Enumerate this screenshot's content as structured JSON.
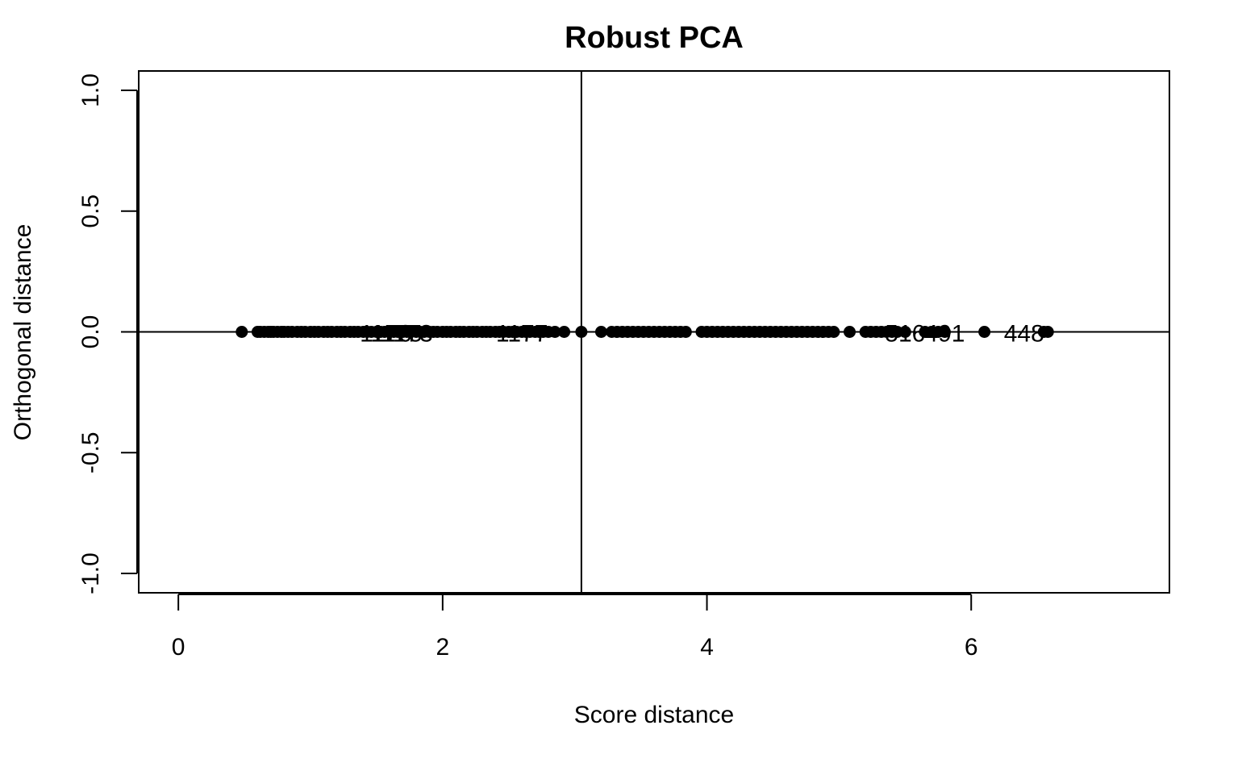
{
  "chart_data": {
    "type": "scatter",
    "title": "Robust PCA",
    "xlabel": "Score distance",
    "ylabel": "Orthogonal distance",
    "xlim": [
      -0.3,
      7.5
    ],
    "ylim": [
      -1.08,
      1.08
    ],
    "x_ticks": [
      0,
      2,
      4,
      6
    ],
    "x_tick_labels": [
      "0",
      "2",
      "4",
      "6"
    ],
    "y_ticks": [
      -1.0,
      -0.5,
      0.0,
      0.5,
      1.0
    ],
    "y_tick_labels": [
      "-1.0",
      "-0.5",
      "0.0",
      "0.5",
      "1.0"
    ],
    "grid": false,
    "cutoff_lines": {
      "x": 3.05,
      "y": 0.0
    },
    "marker_color": "#000000",
    "series": [
      {
        "x": [
          0.48,
          0.6,
          0.62,
          0.65,
          0.68,
          0.7,
          0.72,
          0.75,
          0.78,
          0.8,
          0.83,
          0.86,
          0.9,
          0.93,
          0.96,
          1.0,
          1.03,
          1.06,
          1.1,
          1.13,
          1.16,
          1.2,
          1.23,
          1.26,
          1.3,
          1.33,
          1.36,
          1.4,
          1.43,
          1.46,
          1.5,
          1.53,
          1.56,
          1.6,
          1.63,
          1.66,
          1.7,
          1.73,
          1.76,
          1.8,
          1.83,
          1.86,
          1.9,
          1.93,
          1.96,
          2.0,
          2.03,
          2.06,
          2.1,
          2.13,
          2.16,
          2.2,
          2.23,
          2.26,
          2.3,
          2.33,
          2.36,
          2.4,
          2.43,
          2.46,
          2.5,
          2.53,
          2.56,
          2.6,
          2.63,
          2.66,
          2.7,
          2.73,
          2.76,
          2.8,
          2.85,
          2.92,
          3.05,
          3.2,
          3.28,
          3.32,
          3.36,
          3.4,
          3.44,
          3.48,
          3.52,
          3.56,
          3.6,
          3.64,
          3.68,
          3.72,
          3.76,
          3.8,
          3.84,
          3.96,
          4.0,
          4.04,
          4.08,
          4.12,
          4.16,
          4.2,
          4.24,
          4.28,
          4.32,
          4.36,
          4.4,
          4.44,
          4.48,
          4.52,
          4.56,
          4.6,
          4.64,
          4.68,
          4.72,
          4.76,
          4.8,
          4.84,
          4.88,
          4.92,
          4.96,
          5.08,
          5.2,
          5.24,
          5.28,
          5.32,
          5.36,
          5.4,
          5.44,
          5.5,
          5.65,
          5.7,
          5.75,
          5.8,
          6.1,
          6.55,
          6.58
        ],
        "y": [
          0,
          0,
          0,
          0,
          0,
          0,
          0,
          0,
          0,
          0,
          0,
          0,
          0,
          0,
          0,
          0,
          0,
          0,
          0,
          0,
          0,
          0,
          0,
          0,
          0,
          0,
          0,
          0,
          0,
          0,
          0,
          0,
          0,
          0,
          0,
          0,
          0,
          0,
          0,
          0,
          0,
          0,
          0,
          0,
          0,
          0,
          0,
          0,
          0,
          0,
          0,
          0,
          0,
          0,
          0,
          0,
          0,
          0,
          0,
          0,
          0,
          0,
          0,
          0,
          0,
          0,
          0,
          0,
          0,
          0,
          0,
          0,
          0,
          0,
          0,
          0,
          0,
          0,
          0,
          0,
          0,
          0,
          0,
          0,
          0,
          0,
          0,
          0,
          0,
          0,
          0,
          0,
          0,
          0,
          0,
          0,
          0,
          0,
          0,
          0,
          0,
          0,
          0,
          0,
          0,
          0,
          0,
          0,
          0,
          0,
          0,
          0,
          0,
          0,
          0,
          0,
          0,
          0,
          0,
          0,
          0,
          0,
          0,
          0,
          0,
          0,
          0,
          0,
          0,
          0,
          0
        ]
      }
    ],
    "point_labels": [
      {
        "text": "1176",
        "x": 1.57,
        "y": 0.0
      },
      {
        "text": "1175",
        "x": 1.65,
        "y": 0.0
      },
      {
        "text": "1173",
        "x": 1.73,
        "y": 0.0
      },
      {
        "text": "1177",
        "x": 2.6,
        "y": 0.0
      },
      {
        "text": "516",
        "x": 5.5,
        "y": 0.0
      },
      {
        "text": "491",
        "x": 5.8,
        "y": 0.0
      },
      {
        "text": "448",
        "x": 6.4,
        "y": 0.0
      }
    ]
  }
}
